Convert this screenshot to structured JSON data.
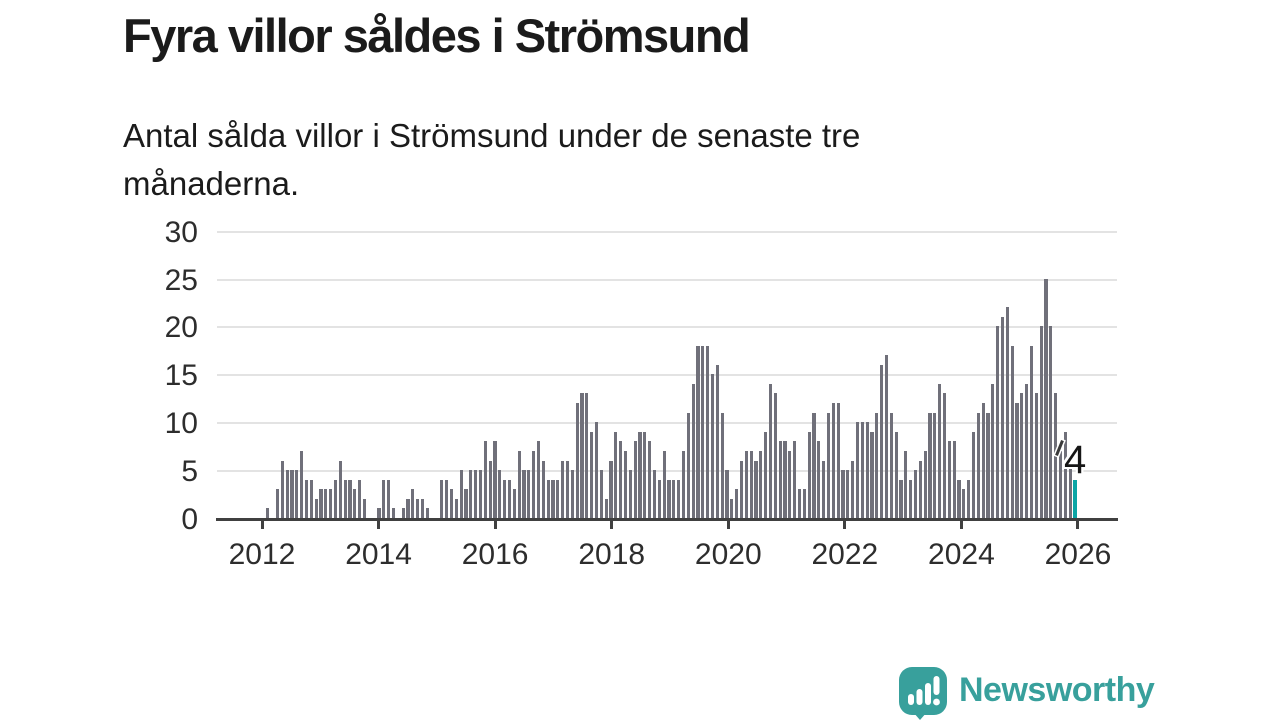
{
  "title": "Fyra villor såldes i Strömsund",
  "subtitle": "Antal sålda villor i Strömsund under de senaste tre månaderna.",
  "brand": {
    "name": "Newsworthy"
  },
  "colors": {
    "text": "#1b1b1b",
    "bar": "#70707a",
    "highlight": "#0ba5a5",
    "axis": "#404040",
    "grid": "#e3e3e3",
    "brand_teal": "#38a09c"
  },
  "chart_data": {
    "type": "bar",
    "title": "Fyra villor såldes i Strömsund",
    "subtitle": "Antal sålda villor i Strömsund under de senaste tre månaderna.",
    "xlabel": "",
    "ylabel": "",
    "ylim": [
      0,
      30
    ],
    "y_ticks": [
      0,
      5,
      10,
      15,
      20,
      25,
      30
    ],
    "x_tick_labels": [
      "2012",
      "2014",
      "2016",
      "2018",
      "2020",
      "2022",
      "2024",
      "2026"
    ],
    "grid": "horizontal",
    "values": [
      0,
      1,
      0,
      3,
      6,
      5,
      5,
      5,
      7,
      4,
      4,
      2,
      3,
      3,
      3,
      4,
      6,
      4,
      4,
      3,
      4,
      2,
      0,
      0,
      1,
      4,
      4,
      1,
      0,
      1,
      2,
      3,
      2,
      2,
      1,
      0,
      0,
      4,
      4,
      3,
      2,
      5,
      3,
      5,
      5,
      5,
      8,
      6,
      8,
      5,
      4,
      4,
      3,
      7,
      5,
      5,
      7,
      8,
      6,
      4,
      4,
      4,
      6,
      6,
      5,
      12,
      13,
      13,
      9,
      10,
      5,
      2,
      6,
      9,
      8,
      7,
      5,
      8,
      9,
      9,
      8,
      5,
      4,
      7,
      4,
      4,
      4,
      7,
      11,
      14,
      18,
      18,
      18,
      15,
      16,
      11,
      5,
      2,
      3,
      6,
      7,
      7,
      6,
      7,
      9,
      14,
      13,
      8,
      8,
      7,
      8,
      3,
      3,
      9,
      11,
      8,
      6,
      11,
      12,
      12,
      5,
      5,
      6,
      10,
      10,
      10,
      9,
      11,
      16,
      17,
      11,
      9,
      4,
      7,
      4,
      5,
      6,
      7,
      11,
      11,
      14,
      13,
      8,
      8,
      4,
      3,
      4,
      9,
      11,
      12,
      11,
      14,
      20,
      21,
      22,
      18,
      12,
      13,
      14,
      18,
      13,
      20,
      25,
      20,
      13,
      7,
      9,
      6,
      4
    ],
    "highlight": {
      "position": "last",
      "value": 4,
      "label": "4",
      "color": "#0ba5a5"
    }
  }
}
